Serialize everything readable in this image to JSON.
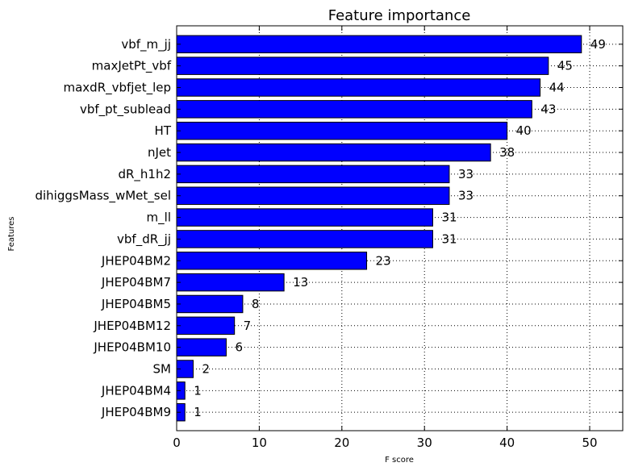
{
  "chart_data": {
    "type": "bar",
    "orientation": "horizontal",
    "title": "Feature importance",
    "xlabel": "F score",
    "ylabel": "Features",
    "xlim": [
      0,
      54
    ],
    "x_ticks": [
      0,
      10,
      20,
      30,
      40,
      50
    ],
    "grid": true,
    "bar_color": "#0000ff",
    "categories": [
      "vbf_m_jj",
      "maxJetPt_vbf",
      "maxdR_vbfjet_lep",
      "vbf_pt_sublead",
      "HT",
      "nJet",
      "dR_h1h2",
      "dihiggsMass_wMet_sel",
      "m_ll",
      "vbf_dR_jj",
      "JHEP04BM2",
      "JHEP04BM7",
      "JHEP04BM5",
      "JHEP04BM12",
      "JHEP04BM10",
      "SM",
      "JHEP04BM4",
      "JHEP04BM9"
    ],
    "values": [
      49,
      45,
      44,
      43,
      40,
      38,
      33,
      33,
      31,
      31,
      23,
      13,
      8,
      7,
      6,
      2,
      1,
      1
    ]
  }
}
